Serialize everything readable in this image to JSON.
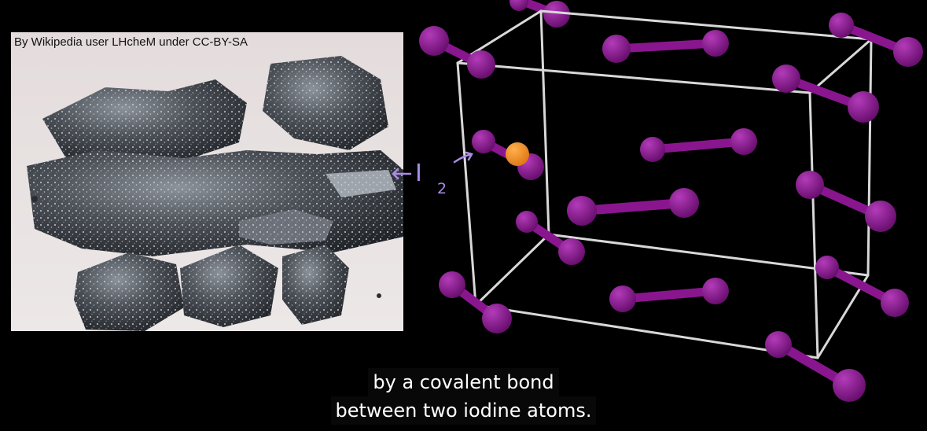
{
  "photo": {
    "credit": "By Wikipedia user LHcheM under CC-BY-SA"
  },
  "annotation": {
    "symbol": "I",
    "subscript": "2",
    "ink_color": "#a98be8"
  },
  "colors": {
    "iodine": "#8a168f",
    "highlight_atom": "#f28c28",
    "cell_edge": "#d8d8d8",
    "background": "#000000"
  },
  "caption": {
    "line1": "by a covalent bond",
    "line2": "between two iodine atoms."
  }
}
